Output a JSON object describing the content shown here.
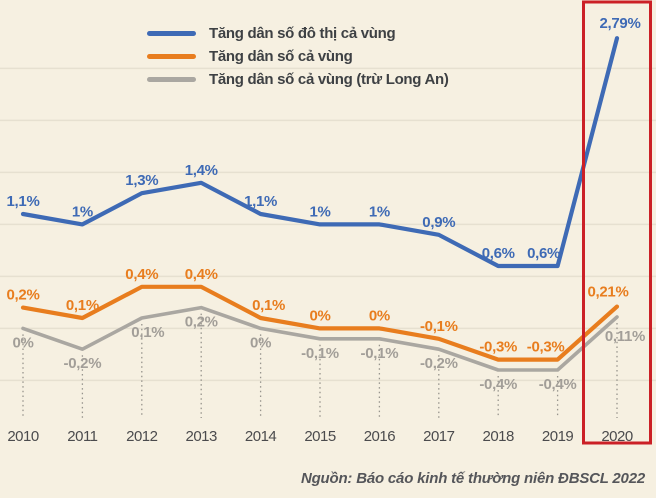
{
  "chart_data": {
    "type": "line",
    "title": "",
    "categories": [
      "2010",
      "2011",
      "2012",
      "2013",
      "2014",
      "2015",
      "2016",
      "2017",
      "2018",
      "2019",
      "2020"
    ],
    "series": [
      {
        "name": "Tăng dân số đô thị cả vùng",
        "color": "#3e6ab5",
        "values": [
          1.1,
          1.0,
          1.3,
          1.4,
          1.1,
          1.0,
          1.0,
          0.9,
          0.6,
          0.6,
          2.79
        ],
        "labels": [
          "1,1%",
          "1%",
          "1,3%",
          "1,4%",
          "1,1%",
          "1%",
          "1%",
          "0,9%",
          "0,6%",
          "0,6%",
          "2,79%"
        ]
      },
      {
        "name": "Tăng dân số cả vùng",
        "color": "#e87d1e",
        "values": [
          0.2,
          0.1,
          0.4,
          0.4,
          0.1,
          0.0,
          0.0,
          -0.1,
          -0.3,
          -0.3,
          0.21
        ],
        "labels": [
          "0,2%",
          "0,1%",
          "0,4%",
          "0,4%",
          "0,1%",
          "0%",
          "0%",
          "-0,1%",
          "-0,3%",
          "-0,3%",
          "0,21%"
        ]
      },
      {
        "name": "Tăng dân số cả vùng (trừ Long An)",
        "color": "#aaa7a1",
        "values": [
          0.0,
          -0.2,
          0.1,
          0.2,
          0.0,
          -0.1,
          -0.1,
          -0.2,
          -0.4,
          -0.4,
          0.11
        ],
        "labels": [
          "0%",
          "-0,2%",
          "0,1%",
          "0,2%",
          "0%",
          "-0,1%",
          "-0,1%",
          "-0,2%",
          "-0,4%",
          "-0,4%",
          "0,11%"
        ]
      }
    ],
    "ylim": [
      -0.5,
      2.5
    ],
    "ytick_step": 0.5,
    "grid": "horizontal",
    "legend_position": "top-left",
    "highlight": {
      "category": "2020",
      "color": "#cb2026"
    },
    "source": "Nguồn: Báo cáo kinh tế thường niên ĐBSCL 2022"
  },
  "colors": {
    "background": "#f6f0e1",
    "gridline": "#e6e0d0",
    "dotted_leader": "#97948d",
    "year_text": "#4b4b4d",
    "legend_text": "#3e4144",
    "source_text": "#55565a",
    "gray_label_text": "#a29e98"
  }
}
